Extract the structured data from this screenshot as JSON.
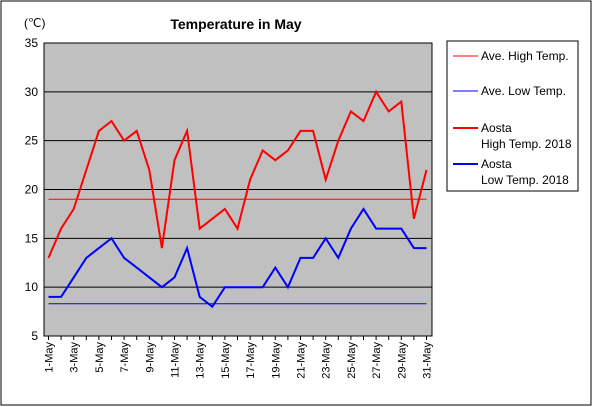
{
  "chart_data": {
    "type": "line",
    "title": "Temperature in May",
    "unit_label": "(℃)",
    "x": [
      "1-May",
      "2-May",
      "3-May",
      "4-May",
      "5-May",
      "6-May",
      "7-May",
      "8-May",
      "9-May",
      "10-May",
      "11-May",
      "12-May",
      "13-May",
      "14-May",
      "15-May",
      "16-May",
      "17-May",
      "18-May",
      "19-May",
      "20-May",
      "21-May",
      "22-May",
      "23-May",
      "24-May",
      "25-May",
      "26-May",
      "27-May",
      "28-May",
      "29-May",
      "30-May",
      "31-May"
    ],
    "x_tick_labels": [
      "1-May",
      "3-May",
      "5-May",
      "7-May",
      "9-May",
      "11-May",
      "13-May",
      "15-May",
      "17-May",
      "19-May",
      "21-May",
      "23-May",
      "25-May",
      "27-May",
      "29-May",
      "31-May"
    ],
    "ylim": [
      5,
      35
    ],
    "y_ticks": [
      "5",
      "10",
      "15",
      "20",
      "25",
      "30",
      "35"
    ],
    "grid": true,
    "legend_position": "right",
    "series": [
      {
        "name": "Ave. High Temp.",
        "color": "#ff0000",
        "width": 1,
        "values": [
          19,
          19,
          19,
          19,
          19,
          19,
          19,
          19,
          19,
          19,
          19,
          19,
          19,
          19,
          19,
          19,
          19,
          19,
          19,
          19,
          19,
          19,
          19,
          19,
          19,
          19,
          19,
          19,
          19,
          19,
          19
        ]
      },
      {
        "name": "Ave. Low Temp.",
        "color": "#0000ff",
        "width": 1,
        "values": [
          8.3,
          8.3,
          8.3,
          8.3,
          8.3,
          8.3,
          8.3,
          8.3,
          8.3,
          8.3,
          8.3,
          8.3,
          8.3,
          8.3,
          8.3,
          8.3,
          8.3,
          8.3,
          8.3,
          8.3,
          8.3,
          8.3,
          8.3,
          8.3,
          8.3,
          8.3,
          8.3,
          8.3,
          8.3,
          8.3,
          8.3
        ]
      },
      {
        "name": "Aosta High Temp. 2018",
        "color": "#ff0000",
        "width": 2,
        "legend_lines": [
          "Aosta",
          "High Temp. 2018"
        ],
        "values": [
          13,
          16,
          18,
          22,
          26,
          27,
          25,
          26,
          22,
          14,
          23,
          26,
          16,
          17,
          18,
          16,
          21,
          24,
          23,
          24,
          26,
          26,
          21,
          25,
          28,
          27,
          30,
          28,
          29,
          17,
          22
        ]
      },
      {
        "name": "Aosta Low Temp. 2018",
        "color": "#0000ff",
        "width": 2,
        "legend_lines": [
          "Aosta",
          "Low Temp. 2018"
        ],
        "values": [
          9,
          9,
          11,
          13,
          14,
          15,
          13,
          12,
          11,
          10,
          11,
          14,
          9,
          8,
          10,
          10,
          10,
          10,
          12,
          10,
          13,
          13,
          15,
          13,
          16,
          18,
          16,
          16,
          16,
          14,
          14
        ]
      }
    ]
  }
}
